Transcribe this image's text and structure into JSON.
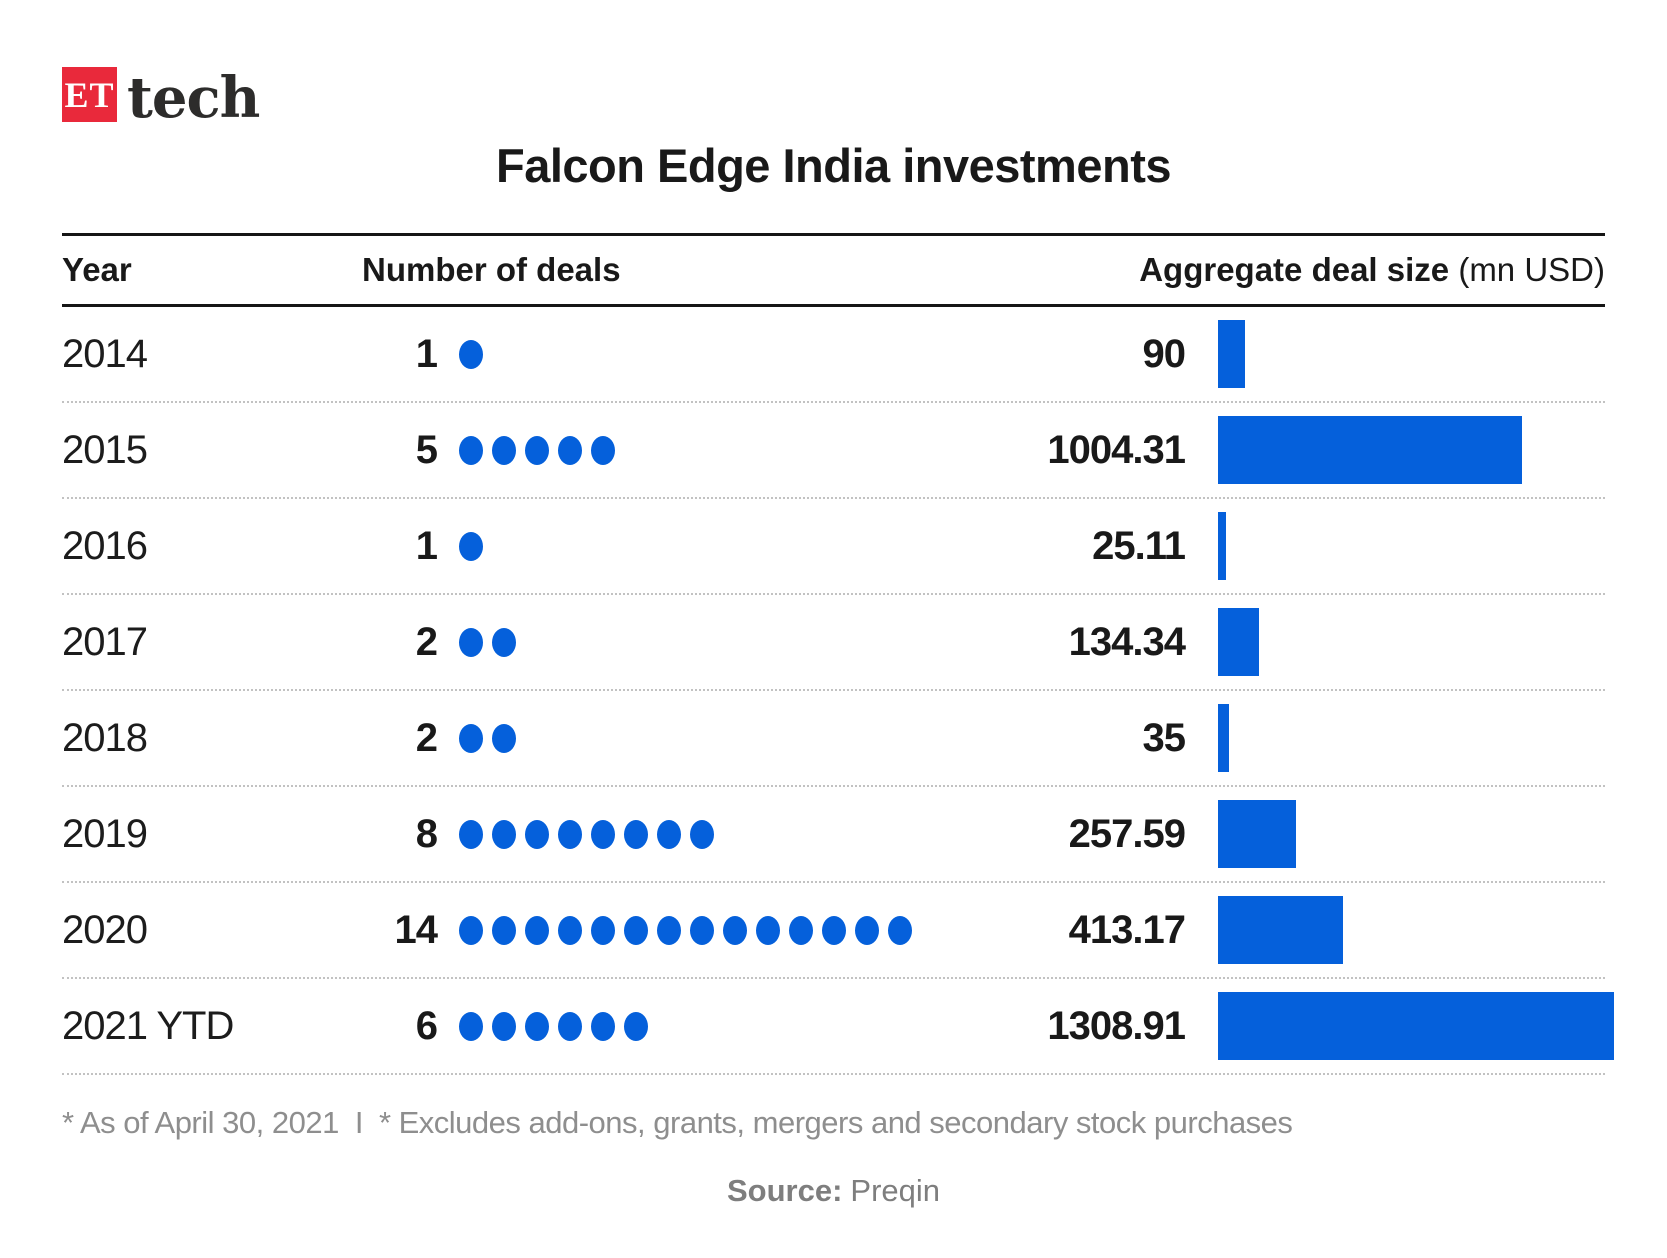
{
  "logo": {
    "mark": "ET",
    "name": "tech"
  },
  "title": "Falcon Edge India investments",
  "table": {
    "columns": {
      "year": "Year",
      "deals": "Number of deals",
      "size": "Aggregate deal size",
      "size_unit": "(mn USD)"
    },
    "rows": [
      {
        "year": "2014",
        "deals": 1,
        "size": "90",
        "size_value": 90
      },
      {
        "year": "2015",
        "deals": 5,
        "size": "1004.31",
        "size_value": 1004.31
      },
      {
        "year": "2016",
        "deals": 1,
        "size": "25.11",
        "size_value": 25.11
      },
      {
        "year": "2017",
        "deals": 2,
        "size": "134.34",
        "size_value": 134.34
      },
      {
        "year": "2018",
        "deals": 2,
        "size": "35",
        "size_value": 35
      },
      {
        "year": "2019",
        "deals": 8,
        "size": "257.59",
        "size_value": 257.59
      },
      {
        "year": "2020",
        "deals": 14,
        "size": "413.17",
        "size_value": 413.17
      },
      {
        "year": "2021 YTD",
        "deals": 6,
        "size": "1308.91",
        "size_value": 1308.91
      }
    ]
  },
  "footnote": {
    "left": "* As of April 30, 2021",
    "separator": "I",
    "right": "* Excludes add-ons, grants, mergers and secondary stock purchases"
  },
  "source": {
    "label": "Source:",
    "value": "Preqin"
  },
  "colors": {
    "accent_blue": "#0560db",
    "logo_red": "#e9293b"
  },
  "chart_data": {
    "type": "table",
    "title": "Falcon Edge India investments",
    "columns": [
      "Year",
      "Number of deals",
      "Aggregate deal size (mn USD)"
    ],
    "categories": [
      "2014",
      "2015",
      "2016",
      "2017",
      "2018",
      "2019",
      "2020",
      "2021 YTD"
    ],
    "series": [
      {
        "name": "Number of deals",
        "encoding": "dot-pictograph",
        "values": [
          1,
          5,
          1,
          2,
          2,
          8,
          14,
          6
        ]
      },
      {
        "name": "Aggregate deal size (mn USD)",
        "encoding": "horizontal-bar",
        "values": [
          90,
          1004.31,
          25.11,
          134.34,
          35,
          257.59,
          413.17,
          1308.91
        ]
      }
    ],
    "bar_axis_max": 1308.91,
    "grid": "dotted row separators",
    "legend_position": "none",
    "footnotes": [
      "* As of April 30, 2021",
      "* Excludes add-ons, grants, mergers and secondary stock purchases"
    ],
    "source": "Preqin"
  }
}
